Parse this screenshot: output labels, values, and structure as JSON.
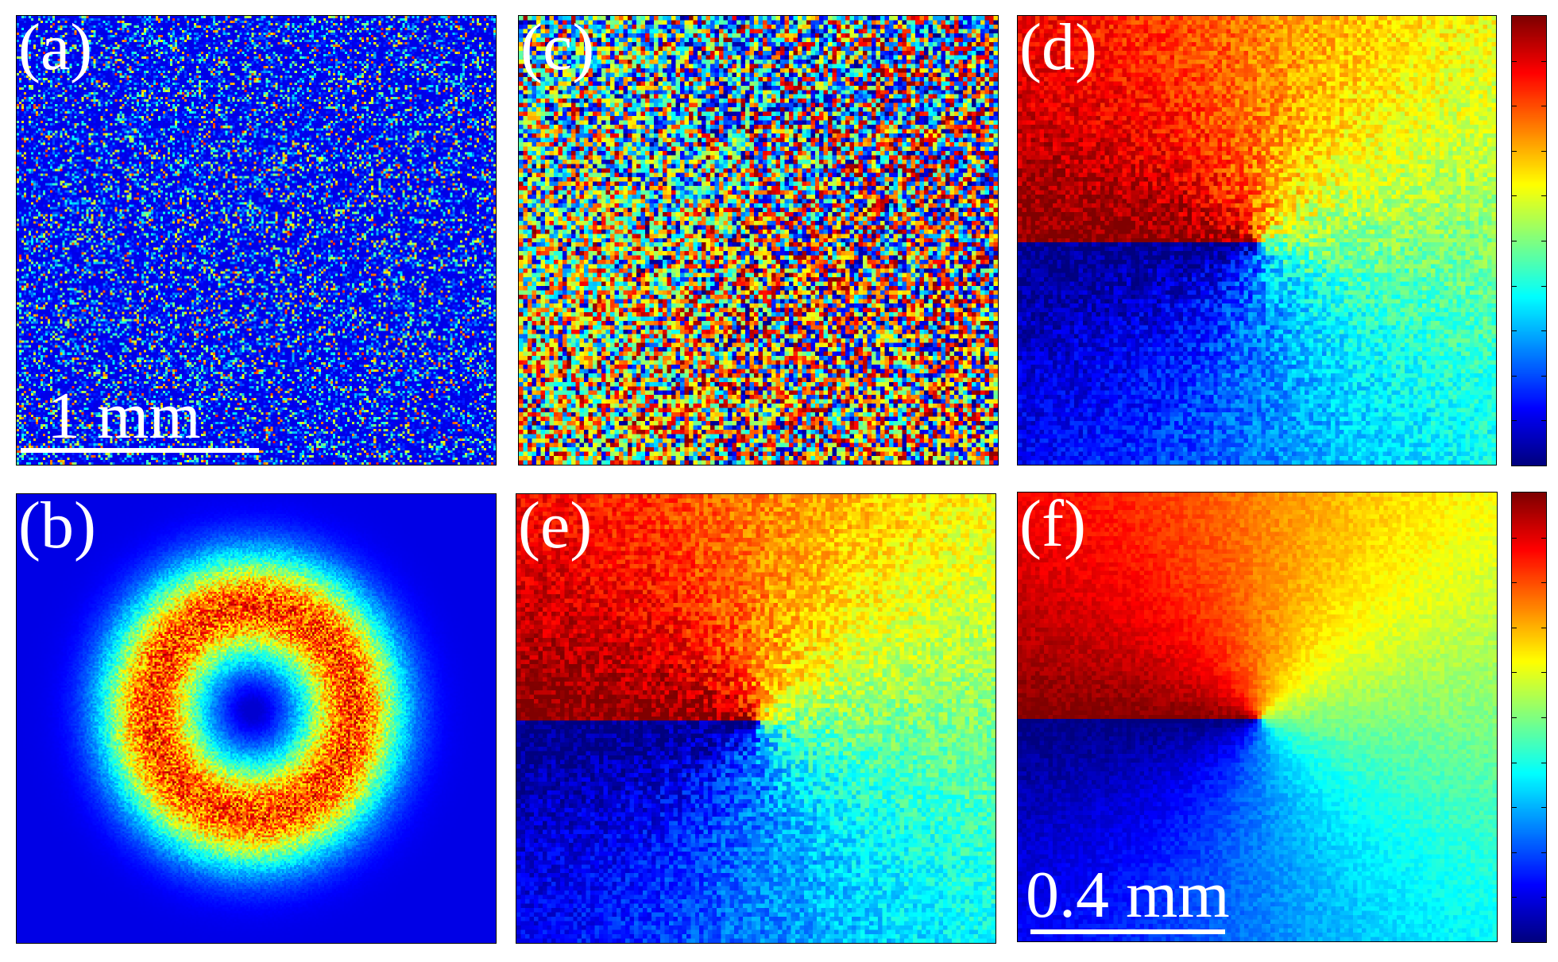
{
  "panels": [
    {
      "id": "a",
      "label": "(a)",
      "pattern": "speckle-intensity"
    },
    {
      "id": "b",
      "label": "(b)",
      "pattern": "donut-intensity"
    },
    {
      "id": "c",
      "label": "(c)",
      "pattern": "speckle-phase"
    },
    {
      "id": "d",
      "label": "(d)",
      "pattern": "vortex-phase-noisy"
    },
    {
      "id": "e",
      "label": "(e)",
      "pattern": "vortex-phase-noisy"
    },
    {
      "id": "f",
      "label": "(f)",
      "pattern": "vortex-phase-clean"
    }
  ],
  "scalebars": {
    "a": {
      "text": "1 mm"
    },
    "f": {
      "text": "0.4 mm"
    }
  },
  "colormap": "jet",
  "colorbar_tick_count": 11
}
